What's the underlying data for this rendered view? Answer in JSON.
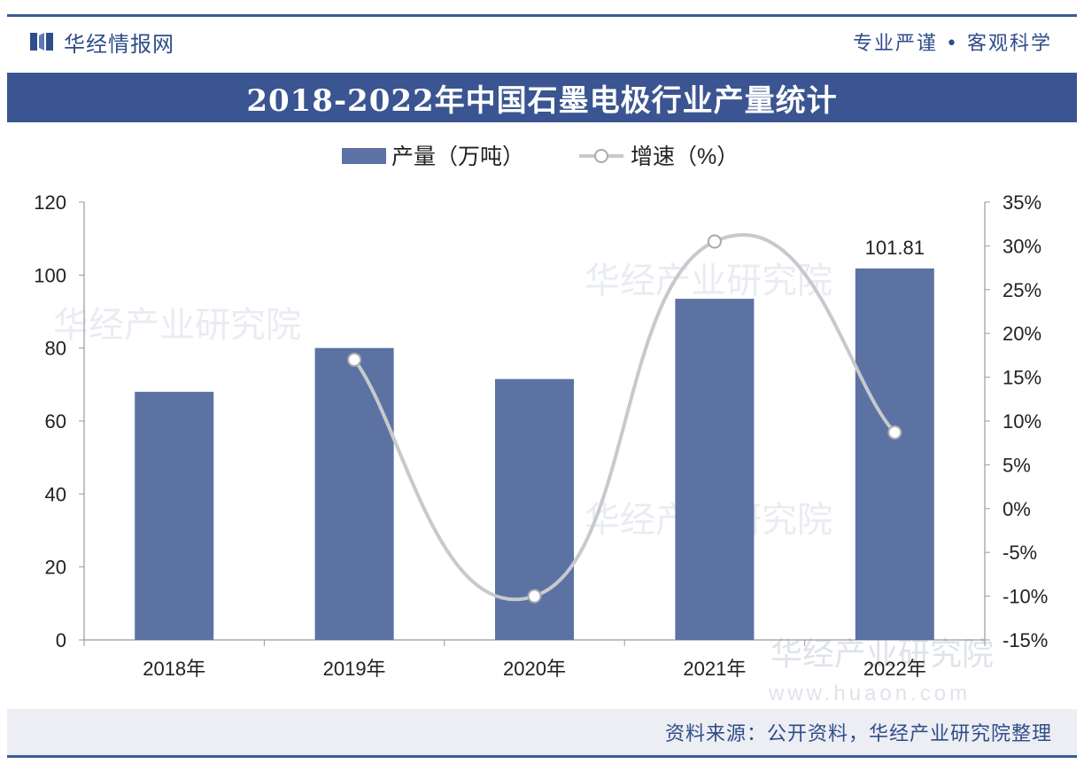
{
  "header": {
    "brand": "华经情报网",
    "slogan": "专业严谨 • 客观科学"
  },
  "title": "2018-2022年中国石墨电极行业产量统计",
  "footer": {
    "source": "资料来源：公开资料，华经产业研究院整理"
  },
  "watermark": {
    "text": "华经产业研究院",
    "url": "www.huaon.com"
  },
  "colors": {
    "brand": "#2f4d8a",
    "banner": "#3a5591",
    "bar": "#5b72a3",
    "line": "#c8c9cd"
  },
  "chart_data": {
    "type": "bar",
    "categories": [
      "2018年",
      "2019年",
      "2020年",
      "2021年",
      "2022年"
    ],
    "series": [
      {
        "name": "产量（万吨）",
        "type": "bar",
        "axis": "left",
        "values": [
          68,
          80,
          71.5,
          93.5,
          101.81
        ]
      },
      {
        "name": "增速（%）",
        "type": "line",
        "axis": "right",
        "values": [
          null,
          17,
          -10,
          30.5,
          8.7
        ]
      }
    ],
    "data_labels": [
      {
        "series": 0,
        "index": 4,
        "text": "101.81"
      }
    ],
    "y_left": {
      "min": 0,
      "max": 120,
      "ticks": [
        "0",
        "20",
        "40",
        "60",
        "80",
        "100",
        "120"
      ]
    },
    "y_right": {
      "min": -15,
      "max": 35,
      "ticks": [
        "-15%",
        "-10%",
        "-5%",
        "0%",
        "5%",
        "10%",
        "15%",
        "20%",
        "25%",
        "30%",
        "35%"
      ]
    },
    "legend": "top-center",
    "grid": false
  }
}
